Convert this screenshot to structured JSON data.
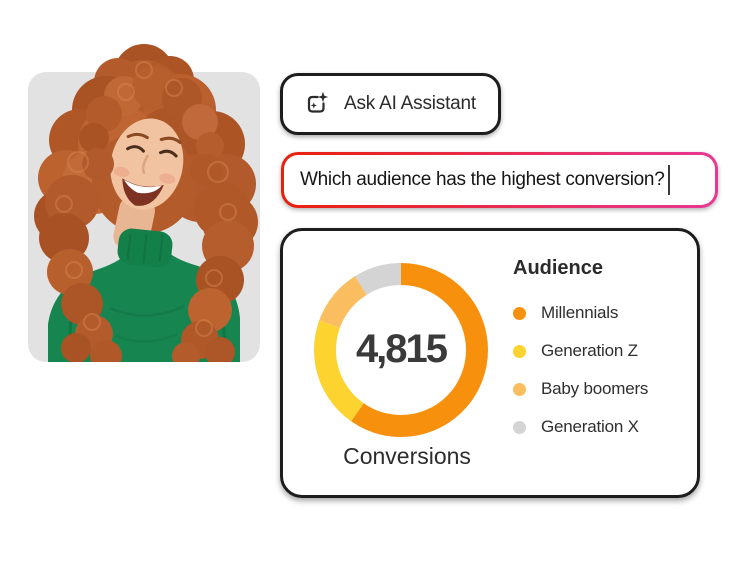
{
  "photo": {
    "description": "Smiling woman with curly red hair wearing a green turtleneck",
    "background_color": "#E2E2E2"
  },
  "ai_assistant_button": {
    "label": "Ask AI Assistant"
  },
  "query_input": {
    "value": "Which audience has the highest conversion?"
  },
  "theme": {
    "outline_color": "#1D1D1D",
    "input_gradient_start": "#E8200D",
    "input_gradient_end": "#E73895",
    "accent_orange": "#F7910D"
  },
  "chart_data": {
    "type": "pie",
    "variant": "donut",
    "title": "Audience",
    "center_value": 4815,
    "center_value_display": "4,815",
    "center_caption": "Conversions",
    "legend_position": "right",
    "donut_hole_ratio": 0.76,
    "segments": [
      {
        "label": "Millennials",
        "percent": 59.7,
        "color": "#F7910D"
      },
      {
        "label": "Generation Z",
        "percent": 20.8,
        "color": "#FDD32F"
      },
      {
        "label": "Baby boomers",
        "percent": 10.6,
        "color": "#FABE61"
      },
      {
        "label": "Generation X",
        "percent": 8.9,
        "color": "#D4D4D4"
      }
    ]
  }
}
